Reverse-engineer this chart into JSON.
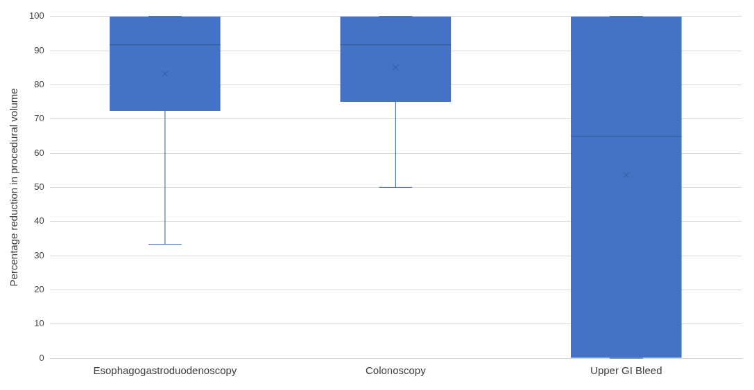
{
  "chart_data": {
    "type": "box",
    "ylabel": "Percentage reduction in procedural volume",
    "categories": [
      "Esophagogastroduodenoscopy",
      "Colonoscopy",
      "Upper GI Bleed"
    ],
    "color": "#4472c4",
    "boxes": [
      {
        "low": 33.3,
        "q1": 72.4,
        "median": 91.7,
        "q3": 100,
        "high": 100,
        "mean": 83.2
      },
      {
        "low": 50,
        "q1": 75,
        "median": 91.7,
        "q3": 100,
        "high": 100,
        "mean": 85.1
      },
      {
        "low": 0,
        "q1": 0,
        "median": 65,
        "q3": 100,
        "high": 100,
        "mean": 53.6
      }
    ],
    "ylim": [
      0,
      100
    ],
    "yticks": [
      0,
      10,
      20,
      30,
      40,
      50,
      60,
      70,
      80,
      90,
      100
    ],
    "grid": "y",
    "legend": false
  }
}
